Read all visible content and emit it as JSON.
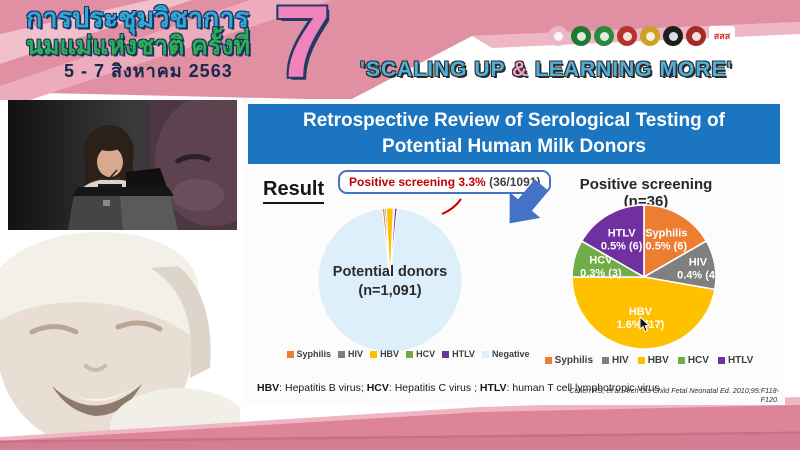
{
  "banner": {
    "title_line1": "การประชุมวิชาการ",
    "title_line2": "นมแม่แห่งชาติ ครั้งที่",
    "date_line": "5 - 7 สิงหาคม 2563",
    "edition_number": "7",
    "tagline_pre": "'SCALING UP ",
    "tagline_amp": "&",
    "tagline_post": " LEARNING MORE'",
    "logos": [
      {
        "name": "breastfeeding-foundation-logo",
        "color": "#e9b7c8"
      },
      {
        "name": "ministry-of-health-logo",
        "color": "#1e7a34"
      },
      {
        "name": "medical-association-logo",
        "color": "#2c8a3e"
      },
      {
        "name": "royal-institute-logo",
        "color": "#b3342c"
      },
      {
        "name": "royal-college-pediatricians-logo",
        "color": "#c9a227"
      },
      {
        "name": "nursing-council-logo",
        "color": "#1e1e1e"
      },
      {
        "name": "perinatal-society-logo",
        "color": "#a32a25"
      },
      {
        "name": "thai-health-foundation-logo",
        "color": "#ffffff",
        "text": "สสส"
      }
    ]
  },
  "slide": {
    "title": "Retrospective Review of Serological Testing of Potential Human Milk Donors",
    "result_label": "Result",
    "callout_highlight": "Positive screening 3.3%",
    "callout_detail": " (36/1091)",
    "footnote_parts": [
      {
        "abbr": "HBV",
        "desc": ": Hepatitis B virus; "
      },
      {
        "abbr": "HCV",
        "desc": ": Hepatitis C virus ; "
      },
      {
        "abbr": "HTLV",
        "desc": ": human T cell lymphotropic virus"
      }
    ],
    "citation": "Cohen RS, et al. Arch Dis Child Fetal Neonatal Ed. 2010;95:F118-F120."
  },
  "chart_data": [
    {
      "type": "pie",
      "title": "",
      "center_lines": [
        "Potential donors",
        "(n=1,091)"
      ],
      "total": 1091,
      "start_angle": -6.2,
      "show_slice_labels": false,
      "legend_position": "bottom",
      "slices": [
        {
          "label": "Syphilis",
          "value": 6,
          "color": "#ed7d31"
        },
        {
          "label": "HIV",
          "value": 4,
          "color": "#7f7f7f"
        },
        {
          "label": "HBV",
          "value": 17,
          "color": "#ffc000"
        },
        {
          "label": "HCV",
          "value": 3,
          "color": "#70ad47"
        },
        {
          "label": "HTLV",
          "value": 6,
          "color": "#7030a0"
        },
        {
          "label": "Negative",
          "value": 1055,
          "color": "#dceffa"
        }
      ]
    },
    {
      "type": "pie",
      "title": "Positive screening (n=36)",
      "total": 36,
      "start_angle": 0,
      "show_slice_labels": true,
      "legend_position": "bottom",
      "slices": [
        {
          "label": "Syphilis",
          "value": 6,
          "pct_label": "0.5% (6)",
          "color": "#ed7d31"
        },
        {
          "label": "HIV",
          "value": 4,
          "pct_label": "0.4% (4)",
          "color": "#7f7f7f"
        },
        {
          "label": "HBV",
          "value": 17,
          "pct_label": "1.6% (17)",
          "color": "#ffc000"
        },
        {
          "label": "HCV",
          "value": 3,
          "pct_label": "0.3% (3)",
          "color": "#70ad47"
        },
        {
          "label": "HTLV",
          "value": 6,
          "pct_label": "0.5% (6)",
          "color": "#7030a0"
        }
      ]
    }
  ],
  "colors": {
    "banner_pink": "#e18fa3",
    "banner_stripe": "#eeafbf",
    "header_blue": "#1c75c1",
    "callout_red": "#c00000",
    "arrow_blue": "#4472c4",
    "bottom_pink": "#dd8498"
  }
}
